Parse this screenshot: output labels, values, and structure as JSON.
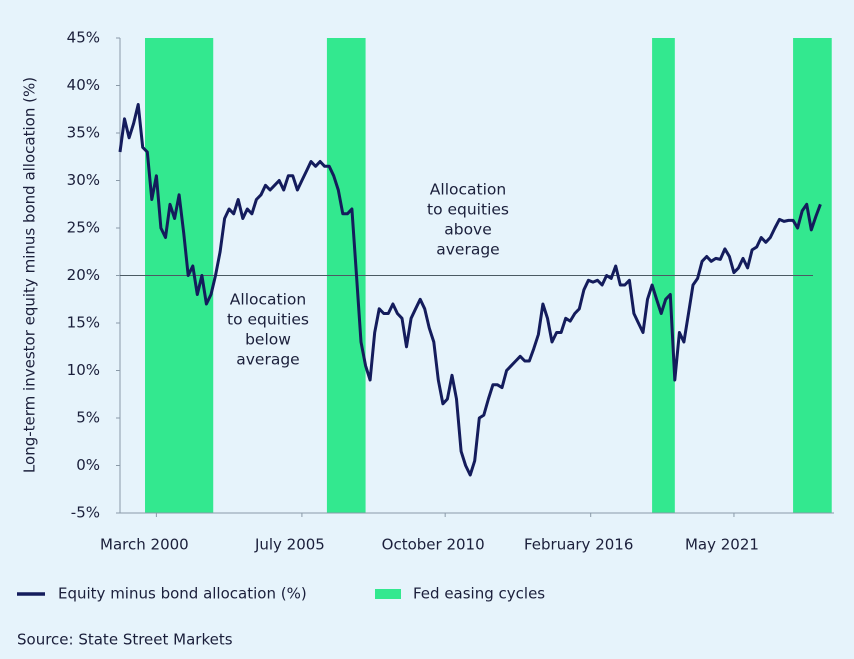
{
  "chart_data": {
    "type": "line",
    "y_label": "Long-term investor equity minus bond allocation (%)",
    "source": "Source: State Street Markets",
    "x": [
      "1998-11",
      "1999-01",
      "1999-03",
      "1999-05",
      "1999-07",
      "1999-09",
      "1999-11",
      "2000-01",
      "2000-03",
      "2000-05",
      "2000-07",
      "2000-09",
      "2000-11",
      "2001-01",
      "2001-03",
      "2001-05",
      "2001-07",
      "2001-09",
      "2001-11",
      "2002-01",
      "2002-03",
      "2002-05",
      "2002-07",
      "2002-09",
      "2002-11",
      "2003-01",
      "2003-03",
      "2003-05",
      "2003-07",
      "2003-09",
      "2003-11",
      "2004-01",
      "2004-03",
      "2004-05",
      "2004-07",
      "2004-09",
      "2004-11",
      "2005-01",
      "2005-03",
      "2005-05",
      "2005-07",
      "2005-09",
      "2005-11",
      "2006-01",
      "2006-03",
      "2006-05",
      "2006-07",
      "2006-09",
      "2006-11",
      "2007-01",
      "2007-03",
      "2007-05",
      "2007-07",
      "2007-09",
      "2007-11",
      "2008-01",
      "2008-03",
      "2008-05",
      "2008-07",
      "2008-09",
      "2008-11",
      "2009-01",
      "2009-03",
      "2009-05",
      "2009-07",
      "2009-09",
      "2009-11",
      "2010-01",
      "2010-03",
      "2010-05",
      "2010-07",
      "2010-09",
      "2010-11",
      "2011-01",
      "2011-03",
      "2011-05",
      "2011-07",
      "2011-09",
      "2011-11",
      "2012-01",
      "2012-03",
      "2012-05",
      "2012-07",
      "2012-09",
      "2012-11",
      "2013-01",
      "2013-03",
      "2013-05",
      "2013-07",
      "2013-09",
      "2013-11",
      "2014-01",
      "2014-03",
      "2014-05",
      "2014-07",
      "2014-09",
      "2014-11",
      "2015-01",
      "2015-03",
      "2015-05",
      "2015-07",
      "2015-09",
      "2015-11",
      "2016-01",
      "2016-03",
      "2016-05",
      "2016-07",
      "2016-09",
      "2016-11",
      "2017-01",
      "2017-03",
      "2017-05",
      "2017-07",
      "2017-09",
      "2017-11",
      "2018-01",
      "2018-03",
      "2018-05",
      "2018-07",
      "2018-09",
      "2018-11",
      "2019-01",
      "2019-03",
      "2019-05",
      "2019-07",
      "2019-09",
      "2019-11",
      "2020-01",
      "2020-03",
      "2020-05",
      "2020-07",
      "2020-09",
      "2020-11",
      "2021-01",
      "2021-03",
      "2021-05",
      "2021-07",
      "2021-09",
      "2021-11",
      "2022-01",
      "2022-03",
      "2022-05",
      "2022-07",
      "2022-09",
      "2022-11",
      "2023-01",
      "2023-03",
      "2023-05",
      "2023-07",
      "2023-09",
      "2023-11",
      "2024-01",
      "2024-03",
      "2024-05",
      "2024-07"
    ],
    "series": [
      {
        "name": "Equity minus bond allocation (%)",
        "color": "#141c5c",
        "values": [
          33,
          36.5,
          34.5,
          36,
          38,
          33.5,
          33,
          28,
          30.5,
          25,
          24,
          27.5,
          26,
          28.5,
          24.5,
          20,
          21,
          18,
          20,
          17,
          18,
          20,
          22.5,
          26,
          27,
          26.5,
          28,
          26,
          27,
          26.5,
          28,
          28.5,
          29.5,
          29,
          29.5,
          30,
          29,
          30.5,
          30.5,
          29,
          30,
          31,
          32,
          31.5,
          32,
          31.5,
          31.5,
          30.5,
          29,
          26.5,
          26.5,
          27,
          20,
          13,
          10.5,
          9,
          14,
          16.5,
          16,
          16,
          17,
          16,
          15.5,
          12.5,
          15.5,
          16.5,
          17.5,
          16.5,
          14.5,
          13,
          9,
          6.5,
          7,
          9.5,
          7,
          1.5,
          0,
          -1,
          0.5,
          5,
          5.3,
          7,
          8.5,
          8.5,
          8.2,
          10,
          10.5,
          11,
          11.5,
          11,
          11,
          12.3,
          13.8,
          17,
          15.5,
          13,
          14,
          14,
          15.5,
          15.2,
          16,
          16.5,
          18.5,
          19.5,
          19.3,
          19.5,
          19,
          20,
          19.7,
          21,
          19,
          19,
          19.5,
          16,
          15,
          14,
          17.5,
          19,
          17.5,
          16,
          17.5,
          18,
          9,
          14,
          13,
          16,
          19,
          19.7,
          21.5,
          22,
          21.5,
          21.8,
          21.7,
          22.8,
          22,
          20.3,
          20.8,
          21.8,
          20.8,
          22.7,
          23,
          24,
          23.5,
          24,
          25,
          25.9,
          25.7,
          25.8,
          25.8,
          25,
          26.8,
          27.5,
          24.8,
          26.2,
          27.5
        ]
      }
    ],
    "bands": {
      "name": "Fed easing cycles",
      "color": "#33e88f",
      "ranges": [
        [
          "1999-10",
          "2002-04"
        ],
        [
          "2006-06",
          "2007-11"
        ],
        [
          "2018-05",
          "2019-03"
        ],
        [
          "2023-07",
          "2024-12"
        ]
      ]
    },
    "reference_line": 20,
    "annotations": [
      {
        "lines": [
          "Allocation",
          "to equities",
          "below",
          "average"
        ]
      },
      {
        "lines": [
          "Allocation",
          "to equities",
          "above",
          "average"
        ]
      }
    ],
    "xlim": [
      "1998-11",
      "2025-01"
    ],
    "xticks": [
      {
        "value": "2000-03",
        "label": "March 2000"
      },
      {
        "value": "2005-07",
        "label": "July 2005"
      },
      {
        "value": "2010-10",
        "label": "October 2010"
      },
      {
        "value": "2016-02",
        "label": "February 2016"
      },
      {
        "value": "2021-05",
        "label": "May 2021"
      }
    ],
    "ylim": [
      -5,
      45
    ],
    "yticks": [
      {
        "value": -5,
        "label": "-5%"
      },
      {
        "value": 0,
        "label": "0%"
      },
      {
        "value": 5,
        "label": "5%"
      },
      {
        "value": 10,
        "label": "10%"
      },
      {
        "value": 15,
        "label": "15%"
      },
      {
        "value": 20,
        "label": "20%"
      },
      {
        "value": 25,
        "label": "25%"
      },
      {
        "value": 30,
        "label": "30%"
      },
      {
        "value": 35,
        "label": "35%"
      },
      {
        "value": 40,
        "label": "40%"
      },
      {
        "value": 45,
        "label": "45%"
      }
    ],
    "grid": false
  }
}
